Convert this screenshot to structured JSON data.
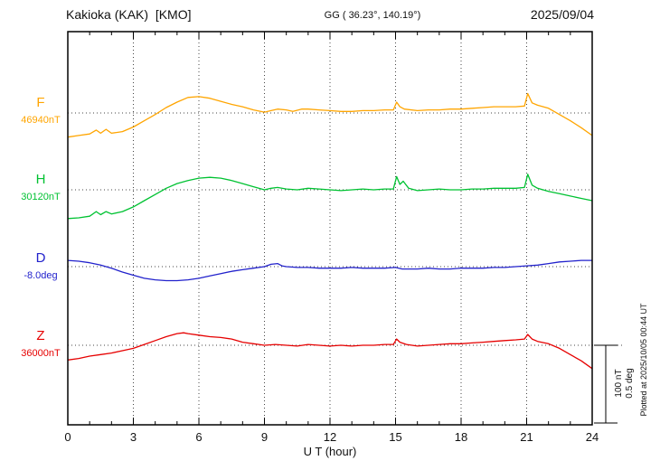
{
  "header": {
    "station_title": "Kakioka (KAK)  [KMO]",
    "coords_label": "GG ( 36.23°, 140.19°)",
    "date_label": "2025/09/04"
  },
  "axis": {
    "x_label": "U T (hour)",
    "x_ticks": [
      0,
      3,
      6,
      9,
      12,
      15,
      18,
      21,
      24
    ],
    "x_range": [
      0,
      24
    ]
  },
  "scale_bar": {
    "line1": "100 nT",
    "line2": "0.5 deg"
  },
  "plotted_note": "Plotted at 2025/10/05 00:44 UT",
  "chart_data": {
    "type": "line",
    "title": "Kakioka (KAK) [KMO] magnetogram 2025/09/04",
    "xlabel": "U T (hour)",
    "x_range": [
      0,
      24
    ],
    "x_ticks": [
      0,
      3,
      6,
      9,
      12,
      15,
      18,
      21,
      24
    ],
    "grid": "vertical dotted gridlines every 3 hours; dotted horizontal baseline per trace",
    "legend_position": "left",
    "scale": {
      "per_division_nT": 100,
      "per_division_deg": 0.5
    },
    "points_meaning": "each point is [UT hour, offset from baseline_value in series unit]",
    "series": [
      {
        "name": "F",
        "unit": "nT",
        "baseline_label": "46940nT",
        "baseline_value": 46940,
        "color": "#FFA500",
        "points": [
          [
            0,
            -31
          ],
          [
            0.5,
            -29
          ],
          [
            1,
            -27
          ],
          [
            1.3,
            -22
          ],
          [
            1.5,
            -26
          ],
          [
            1.75,
            -21
          ],
          [
            2,
            -26
          ],
          [
            2.5,
            -24
          ],
          [
            3,
            -18
          ],
          [
            3.5,
            -10
          ],
          [
            4,
            -2
          ],
          [
            4.5,
            7
          ],
          [
            5,
            14
          ],
          [
            5.5,
            20
          ],
          [
            6,
            21
          ],
          [
            6.5,
            19
          ],
          [
            7,
            15
          ],
          [
            7.5,
            11
          ],
          [
            8,
            8
          ],
          [
            8.5,
            4
          ],
          [
            9,
            1
          ],
          [
            9.3,
            3
          ],
          [
            9.6,
            5
          ],
          [
            10,
            4
          ],
          [
            10.3,
            2
          ],
          [
            10.7,
            5
          ],
          [
            11,
            5
          ],
          [
            11.5,
            4
          ],
          [
            12,
            3
          ],
          [
            12.5,
            2
          ],
          [
            13,
            2
          ],
          [
            13.5,
            3
          ],
          [
            14,
            3
          ],
          [
            14.5,
            4
          ],
          [
            14.9,
            4
          ],
          [
            15.05,
            14
          ],
          [
            15.2,
            8
          ],
          [
            15.4,
            5
          ],
          [
            16,
            3
          ],
          [
            16.5,
            4
          ],
          [
            17,
            4
          ],
          [
            17.5,
            5
          ],
          [
            18,
            5
          ],
          [
            18.5,
            6
          ],
          [
            19,
            7
          ],
          [
            19.5,
            8
          ],
          [
            20,
            8
          ],
          [
            20.5,
            8
          ],
          [
            20.9,
            9
          ],
          [
            21.05,
            25
          ],
          [
            21.25,
            13
          ],
          [
            21.5,
            10
          ],
          [
            22,
            6
          ],
          [
            22.5,
            -2
          ],
          [
            23,
            -10
          ],
          [
            23.5,
            -19
          ],
          [
            24,
            -29
          ]
        ]
      },
      {
        "name": "H",
        "unit": "nT",
        "baseline_label": "30120nT",
        "baseline_value": 30120,
        "color": "#00C232",
        "points": [
          [
            0,
            -37
          ],
          [
            0.5,
            -36
          ],
          [
            1,
            -34
          ],
          [
            1.3,
            -28
          ],
          [
            1.5,
            -32
          ],
          [
            1.75,
            -28
          ],
          [
            2,
            -31
          ],
          [
            2.5,
            -28
          ],
          [
            3,
            -22
          ],
          [
            3.5,
            -14
          ],
          [
            4,
            -6
          ],
          [
            4.5,
            2
          ],
          [
            5,
            8
          ],
          [
            5.5,
            12
          ],
          [
            6,
            15
          ],
          [
            6.5,
            16
          ],
          [
            7,
            15
          ],
          [
            7.5,
            12
          ],
          [
            8,
            8
          ],
          [
            8.5,
            4
          ],
          [
            9,
            0
          ],
          [
            9.3,
            2
          ],
          [
            9.6,
            3
          ],
          [
            10,
            1
          ],
          [
            10.5,
            0
          ],
          [
            11,
            2
          ],
          [
            11.5,
            1
          ],
          [
            12,
            0
          ],
          [
            12.5,
            -1
          ],
          [
            13,
            0
          ],
          [
            13.5,
            1
          ],
          [
            14,
            0
          ],
          [
            14.5,
            1
          ],
          [
            14.9,
            1
          ],
          [
            15.05,
            17
          ],
          [
            15.2,
            7
          ],
          [
            15.35,
            11
          ],
          [
            15.6,
            2
          ],
          [
            16,
            -1
          ],
          [
            16.5,
            0
          ],
          [
            17,
            1
          ],
          [
            17.5,
            0
          ],
          [
            18,
            0
          ],
          [
            18.5,
            1
          ],
          [
            19,
            1
          ],
          [
            19.5,
            2
          ],
          [
            20,
            2
          ],
          [
            20.5,
            2
          ],
          [
            20.9,
            3
          ],
          [
            21.05,
            20
          ],
          [
            21.25,
            6
          ],
          [
            21.5,
            2
          ],
          [
            22,
            -2
          ],
          [
            22.5,
            -5
          ],
          [
            23,
            -8
          ],
          [
            23.5,
            -11
          ],
          [
            24,
            -14
          ]
        ]
      },
      {
        "name": "D",
        "unit": "deg",
        "baseline_label": "-8.0deg",
        "baseline_value": -8.0,
        "color": "#2222CC",
        "points": [
          [
            0,
            0.04
          ],
          [
            0.5,
            0.035
          ],
          [
            1,
            0.025
          ],
          [
            1.5,
            0.01
          ],
          [
            2,
            -0.01
          ],
          [
            2.5,
            -0.035
          ],
          [
            3,
            -0.055
          ],
          [
            3.5,
            -0.075
          ],
          [
            4,
            -0.085
          ],
          [
            4.5,
            -0.09
          ],
          [
            5,
            -0.09
          ],
          [
            5.5,
            -0.085
          ],
          [
            6,
            -0.075
          ],
          [
            6.5,
            -0.06
          ],
          [
            7,
            -0.045
          ],
          [
            7.5,
            -0.03
          ],
          [
            8,
            -0.02
          ],
          [
            8.5,
            -0.01
          ],
          [
            9,
            0
          ],
          [
            9.3,
            0.015
          ],
          [
            9.6,
            0.02
          ],
          [
            9.8,
            0.005
          ],
          [
            10,
            0
          ],
          [
            10.5,
            -0.005
          ],
          [
            11,
            -0.005
          ],
          [
            11.5,
            -0.01
          ],
          [
            12,
            -0.01
          ],
          [
            12.5,
            -0.01
          ],
          [
            13,
            -0.005
          ],
          [
            13.5,
            -0.01
          ],
          [
            14,
            -0.01
          ],
          [
            14.5,
            -0.01
          ],
          [
            15,
            -0.005
          ],
          [
            15.3,
            -0.015
          ],
          [
            16,
            -0.015
          ],
          [
            16.5,
            -0.01
          ],
          [
            17,
            -0.015
          ],
          [
            17.5,
            -0.015
          ],
          [
            18,
            -0.01
          ],
          [
            18.5,
            -0.01
          ],
          [
            19,
            -0.01
          ],
          [
            19.5,
            -0.005
          ],
          [
            20,
            -0.005
          ],
          [
            20.5,
            0
          ],
          [
            21,
            0.005
          ],
          [
            21.5,
            0.01
          ],
          [
            22,
            0.02
          ],
          [
            22.5,
            0.03
          ],
          [
            23,
            0.035
          ],
          [
            23.5,
            0.04
          ],
          [
            24,
            0.04
          ]
        ]
      },
      {
        "name": "Z",
        "unit": "nT",
        "baseline_label": "36000nT",
        "baseline_value": 36000,
        "color": "#E60000",
        "points": [
          [
            0,
            -19
          ],
          [
            0.5,
            -17
          ],
          [
            1,
            -14
          ],
          [
            1.5,
            -12
          ],
          [
            2,
            -10
          ],
          [
            2.5,
            -7
          ],
          [
            3,
            -4
          ],
          [
            3.5,
            1
          ],
          [
            4,
            6
          ],
          [
            4.5,
            11
          ],
          [
            5,
            15
          ],
          [
            5.3,
            16
          ],
          [
            5.5,
            15
          ],
          [
            6,
            13
          ],
          [
            6.5,
            11
          ],
          [
            7,
            10
          ],
          [
            7.5,
            8
          ],
          [
            8,
            4
          ],
          [
            8.5,
            2
          ],
          [
            9,
            0
          ],
          [
            9.5,
            1
          ],
          [
            10,
            0
          ],
          [
            10.5,
            -1
          ],
          [
            11,
            1
          ],
          [
            11.5,
            0
          ],
          [
            12,
            -1
          ],
          [
            12.5,
            0
          ],
          [
            13,
            -1
          ],
          [
            13.5,
            0
          ],
          [
            14,
            0
          ],
          [
            14.5,
            1
          ],
          [
            14.9,
            1
          ],
          [
            15.05,
            8
          ],
          [
            15.2,
            4
          ],
          [
            15.5,
            1
          ],
          [
            16,
            -1
          ],
          [
            16.5,
            0
          ],
          [
            17,
            1
          ],
          [
            17.5,
            2
          ],
          [
            18,
            2
          ],
          [
            18.5,
            3
          ],
          [
            19,
            4
          ],
          [
            19.5,
            5
          ],
          [
            20,
            6
          ],
          [
            20.5,
            7
          ],
          [
            20.9,
            8
          ],
          [
            21.05,
            14
          ],
          [
            21.25,
            8
          ],
          [
            21.5,
            5
          ],
          [
            22,
            2
          ],
          [
            22.5,
            -4
          ],
          [
            23,
            -12
          ],
          [
            23.5,
            -20
          ],
          [
            24,
            -30
          ]
        ]
      }
    ]
  }
}
